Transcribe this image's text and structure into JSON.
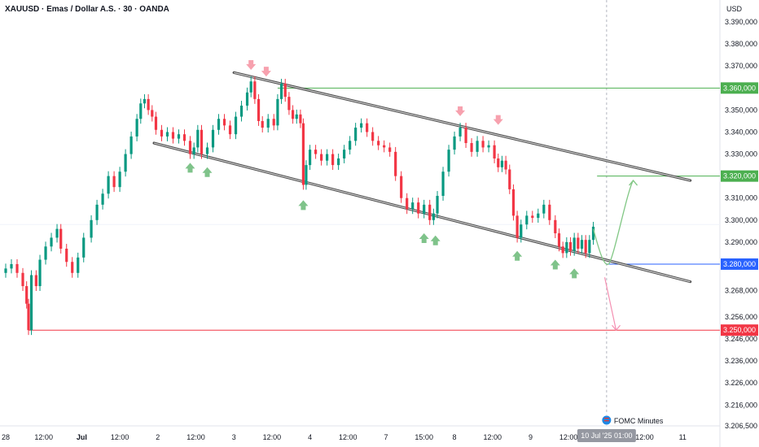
{
  "chart_data": {
    "type": "candlestick",
    "title": "XAUUSD · Emas / Dollar A.S. · 30 · OANDA",
    "currency": "USD",
    "ylim": [
      3206.5,
      3400
    ],
    "y_ticks": [
      {
        "v": 3390,
        "label": "3.390,000"
      },
      {
        "v": 3380,
        "label": "3.380,000"
      },
      {
        "v": 3370,
        "label": "3.370,000"
      },
      {
        "v": 3350,
        "label": "3.350,000"
      },
      {
        "v": 3340,
        "label": "3.340,000"
      },
      {
        "v": 3330,
        "label": "3.330,000"
      },
      {
        "v": 3310,
        "label": "3.310,000"
      },
      {
        "v": 3300,
        "label": "3.300,000"
      },
      {
        "v": 3290,
        "label": "3.290,000"
      },
      {
        "v": 3268,
        "label": "3.268,000"
      },
      {
        "v": 3256,
        "label": "3.256,000"
      },
      {
        "v": 3246,
        "label": "3.246,000"
      },
      {
        "v": 3236,
        "label": "3.236,000"
      },
      {
        "v": 3226,
        "label": "3.226,000"
      },
      {
        "v": 3216,
        "label": "3.216,000"
      },
      {
        "v": 3206.5,
        "label": "3.206,500"
      }
    ],
    "x_ticks": [
      {
        "t": 0,
        "label": "28"
      },
      {
        "t": 2,
        "label": "12:00"
      },
      {
        "t": 4,
        "label": "Jul",
        "bold": true
      },
      {
        "t": 6,
        "label": "12:00"
      },
      {
        "t": 8,
        "label": "2"
      },
      {
        "t": 10,
        "label": "12:00"
      },
      {
        "t": 12,
        "label": "3"
      },
      {
        "t": 14,
        "label": "12:00"
      },
      {
        "t": 16,
        "label": "4"
      },
      {
        "t": 18,
        "label": "12:00"
      },
      {
        "t": 20,
        "label": "7"
      },
      {
        "t": 22,
        "label": "15:00"
      },
      {
        "t": 23.6,
        "label": "8"
      },
      {
        "t": 25.6,
        "label": "12:00"
      },
      {
        "t": 27.6,
        "label": "9"
      },
      {
        "t": 29.6,
        "label": "12:00"
      },
      {
        "t": 33.6,
        "label": "12:00"
      },
      {
        "t": 35.6,
        "label": "11"
      }
    ],
    "current_time_label": "10 Jul '25   01:00",
    "current_time_t": 31.6,
    "price_levels": [
      {
        "v": 3360,
        "label": "3.360,000",
        "color": "#4caf50"
      },
      {
        "v": 3320,
        "label": "3.320,000",
        "color": "#4caf50"
      },
      {
        "v": 3280,
        "label": "3.280,000",
        "color": "#2962ff"
      },
      {
        "v": 3250,
        "label": "3.250,000",
        "color": "#f23645"
      }
    ],
    "channel_upper": [
      [
        12,
        3367
      ],
      [
        36,
        3318
      ]
    ],
    "channel_lower": [
      [
        7.8,
        3335
      ],
      [
        36,
        3272
      ]
    ],
    "event": "FOMC Minutes",
    "series": [
      {
        "t": 0.0,
        "close": 3278
      },
      {
        "t": 0.3,
        "close": 3280
      },
      {
        "t": 0.6,
        "close": 3276
      },
      {
        "t": 0.9,
        "close": 3270
      },
      {
        "t": 1.1,
        "close": 3262
      },
      {
        "t": 1.2,
        "close": 3250
      },
      {
        "t": 1.35,
        "close": 3275
      },
      {
        "t": 1.6,
        "close": 3270
      },
      {
        "t": 1.8,
        "close": 3282
      },
      {
        "t": 2.1,
        "close": 3288
      },
      {
        "t": 2.4,
        "close": 3292
      },
      {
        "t": 2.7,
        "close": 3296
      },
      {
        "t": 2.9,
        "close": 3287
      },
      {
        "t": 3.2,
        "close": 3281
      },
      {
        "t": 3.5,
        "close": 3276
      },
      {
        "t": 3.8,
        "close": 3283
      },
      {
        "t": 4.1,
        "close": 3292
      },
      {
        "t": 4.5,
        "close": 3300
      },
      {
        "t": 4.8,
        "close": 3307
      },
      {
        "t": 5.1,
        "close": 3312
      },
      {
        "t": 5.4,
        "close": 3320
      },
      {
        "t": 5.7,
        "close": 3315
      },
      {
        "t": 6.0,
        "close": 3322
      },
      {
        "t": 6.3,
        "close": 3330
      },
      {
        "t": 6.6,
        "close": 3338
      },
      {
        "t": 6.9,
        "close": 3346
      },
      {
        "t": 7.1,
        "close": 3353
      },
      {
        "t": 7.3,
        "close": 3355
      },
      {
        "t": 7.5,
        "close": 3350
      },
      {
        "t": 7.7,
        "close": 3347
      },
      {
        "t": 7.9,
        "close": 3341
      },
      {
        "t": 8.2,
        "close": 3338
      },
      {
        "t": 8.5,
        "close": 3340
      },
      {
        "t": 8.8,
        "close": 3337
      },
      {
        "t": 9.1,
        "close": 3339
      },
      {
        "t": 9.4,
        "close": 3336
      },
      {
        "t": 9.7,
        "close": 3330
      },
      {
        "t": 9.9,
        "close": 3333
      },
      {
        "t": 10.1,
        "close": 3341
      },
      {
        "t": 10.3,
        "close": 3330
      },
      {
        "t": 10.6,
        "close": 3333
      },
      {
        "t": 10.9,
        "close": 3341
      },
      {
        "t": 11.2,
        "close": 3346
      },
      {
        "t": 11.5,
        "close": 3343
      },
      {
        "t": 11.8,
        "close": 3339
      },
      {
        "t": 12.1,
        "close": 3347
      },
      {
        "t": 12.4,
        "close": 3352
      },
      {
        "t": 12.7,
        "close": 3358
      },
      {
        "t": 12.9,
        "close": 3363
      },
      {
        "t": 13.1,
        "close": 3355
      },
      {
        "t": 13.3,
        "close": 3345
      },
      {
        "t": 13.5,
        "close": 3342
      },
      {
        "t": 13.8,
        "close": 3346
      },
      {
        "t": 14.1,
        "close": 3343
      },
      {
        "t": 14.3,
        "close": 3355
      },
      {
        "t": 14.5,
        "close": 3362
      },
      {
        "t": 14.7,
        "close": 3356
      },
      {
        "t": 14.9,
        "close": 3350
      },
      {
        "t": 15.1,
        "close": 3346
      },
      {
        "t": 15.3,
        "close": 3348
      },
      {
        "t": 15.5,
        "close": 3344
      },
      {
        "t": 15.65,
        "close": 3316
      },
      {
        "t": 15.8,
        "close": 3325
      },
      {
        "t": 16.0,
        "close": 3332
      },
      {
        "t": 16.3,
        "close": 3330
      },
      {
        "t": 16.6,
        "close": 3327
      },
      {
        "t": 16.9,
        "close": 3330
      },
      {
        "t": 17.2,
        "close": 3325
      },
      {
        "t": 17.5,
        "close": 3328
      },
      {
        "t": 17.8,
        "close": 3332
      },
      {
        "t": 18.1,
        "close": 3336
      },
      {
        "t": 18.4,
        "close": 3342
      },
      {
        "t": 18.7,
        "close": 3344
      },
      {
        "t": 19.0,
        "close": 3340
      },
      {
        "t": 19.3,
        "close": 3336
      },
      {
        "t": 19.6,
        "close": 3334
      },
      {
        "t": 19.9,
        "close": 3333
      },
      {
        "t": 20.2,
        "close": 3331
      },
      {
        "t": 20.5,
        "close": 3320
      },
      {
        "t": 20.8,
        "close": 3310
      },
      {
        "t": 21.1,
        "close": 3305
      },
      {
        "t": 21.4,
        "close": 3308
      },
      {
        "t": 21.7,
        "close": 3303
      },
      {
        "t": 22.0,
        "close": 3307
      },
      {
        "t": 22.3,
        "close": 3300
      },
      {
        "t": 22.5,
        "close": 3303
      },
      {
        "t": 22.7,
        "close": 3311
      },
      {
        "t": 23.0,
        "close": 3322
      },
      {
        "t": 23.3,
        "close": 3332
      },
      {
        "t": 23.6,
        "close": 3338
      },
      {
        "t": 23.9,
        "close": 3342
      },
      {
        "t": 24.2,
        "close": 3335
      },
      {
        "t": 24.5,
        "close": 3331
      },
      {
        "t": 24.8,
        "close": 3336
      },
      {
        "t": 25.1,
        "close": 3333
      },
      {
        "t": 25.4,
        "close": 3334
      },
      {
        "t": 25.7,
        "close": 3328
      },
      {
        "t": 25.9,
        "close": 3324
      },
      {
        "t": 26.1,
        "close": 3327
      },
      {
        "t": 26.3,
        "close": 3323
      },
      {
        "t": 26.5,
        "close": 3314
      },
      {
        "t": 26.7,
        "close": 3302
      },
      {
        "t": 26.9,
        "close": 3292
      },
      {
        "t": 27.1,
        "close": 3298
      },
      {
        "t": 27.4,
        "close": 3302
      },
      {
        "t": 27.7,
        "close": 3301
      },
      {
        "t": 28.0,
        "close": 3303
      },
      {
        "t": 28.3,
        "close": 3307
      },
      {
        "t": 28.6,
        "close": 3300
      },
      {
        "t": 28.9,
        "close": 3294
      },
      {
        "t": 29.1,
        "close": 3288
      },
      {
        "t": 29.3,
        "close": 3285
      },
      {
        "t": 29.5,
        "close": 3290
      },
      {
        "t": 29.7,
        "close": 3286
      },
      {
        "t": 29.9,
        "close": 3292
      },
      {
        "t": 30.1,
        "close": 3287
      },
      {
        "t": 30.3,
        "close": 3291
      },
      {
        "t": 30.5,
        "close": 3285
      },
      {
        "t": 30.7,
        "close": 3291
      },
      {
        "t": 30.9,
        "close": 3297
      }
    ],
    "resistance_markers": [
      {
        "t": 12.9,
        "v": 3369
      },
      {
        "t": 13.7,
        "v": 3366
      },
      {
        "t": 23.9,
        "v": 3348
      },
      {
        "t": 25.9,
        "v": 3344
      }
    ],
    "support_markers": [
      {
        "t": 9.7,
        "v": 3326
      },
      {
        "t": 10.6,
        "v": 3324
      },
      {
        "t": 15.65,
        "v": 3309
      },
      {
        "t": 22.0,
        "v": 3294
      },
      {
        "t": 22.6,
        "v": 3293
      },
      {
        "t": 26.9,
        "v": 3286
      },
      {
        "t": 28.9,
        "v": 3282
      },
      {
        "t": 29.9,
        "v": 3278
      }
    ],
    "projection_up": [
      [
        30.9,
        3296
      ],
      [
        31.7,
        3280
      ],
      [
        33.0,
        3318
      ]
    ],
    "projection_down": [
      [
        31.5,
        3274
      ],
      [
        32.1,
        3250
      ]
    ]
  }
}
